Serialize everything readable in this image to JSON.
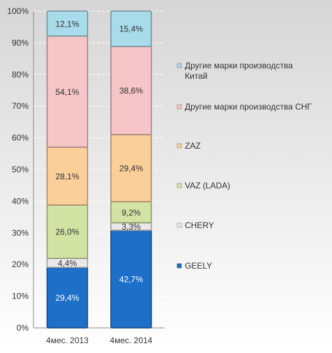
{
  "chart_data": {
    "type": "bar",
    "stacked": true,
    "normalized": true,
    "title": "",
    "xlabel": "",
    "ylabel": "",
    "ylim": [
      0,
      100
    ],
    "y_ticks": [
      "0%",
      "10%",
      "20%",
      "30%",
      "40%",
      "50%",
      "60%",
      "70%",
      "80%",
      "90%",
      "100%"
    ],
    "categories": [
      "4мес. 2013",
      "4мес. 2014"
    ],
    "legend_position": "right",
    "series": [
      {
        "name": "GEELY",
        "values": [
          29.4,
          42.7
        ],
        "labels": [
          "29,4%",
          "42,7%"
        ],
        "color": "#1E6FC8"
      },
      {
        "name": "CHERY",
        "values": [
          4.4,
          3.3
        ],
        "labels": [
          "4,4%",
          "3,3%"
        ],
        "color": "#E9E9E9"
      },
      {
        "name": "VAZ (LADA)",
        "values": [
          26.0,
          9.2
        ],
        "labels": [
          "26,0%",
          "9,2%"
        ],
        "color": "#D3E3A3"
      },
      {
        "name": "ZAZ",
        "values": [
          28.1,
          29.4
        ],
        "labels": [
          "28,1%",
          "29,4%"
        ],
        "color": "#FACF9A"
      },
      {
        "name": "Другие марки производства СНГ",
        "values": [
          54.1,
          38.6
        ],
        "labels": [
          "54,1%",
          "38,6%"
        ],
        "color": "#F5C5C7"
      },
      {
        "name": "Другие марки производства Китай",
        "values": [
          12.1,
          15.4
        ],
        "labels": [
          "12,1%",
          "15,4%"
        ],
        "color": "#A9DCEB"
      }
    ],
    "legend_items": [
      {
        "lines": [
          "Другие марки производства",
          "Китай"
        ],
        "color": "#A9DCEB"
      },
      {
        "lines": [
          "Другие марки производства СНГ"
        ],
        "color": "#F5C5C7"
      },
      {
        "lines": [
          "ZAZ"
        ],
        "color": "#FACF9A"
      },
      {
        "lines": [
          "VAZ (LADA)"
        ],
        "color": "#D3E3A3"
      },
      {
        "lines": [
          "CHERY"
        ],
        "color": "#E9E9E9"
      },
      {
        "lines": [
          "GEELY"
        ],
        "color": "#1E6FC8"
      }
    ],
    "colors": {
      "background_top": "#D6D6D6",
      "background_bottom": "#FFFFFF",
      "grid": "#FFFFFF",
      "text": "#333333"
    }
  }
}
